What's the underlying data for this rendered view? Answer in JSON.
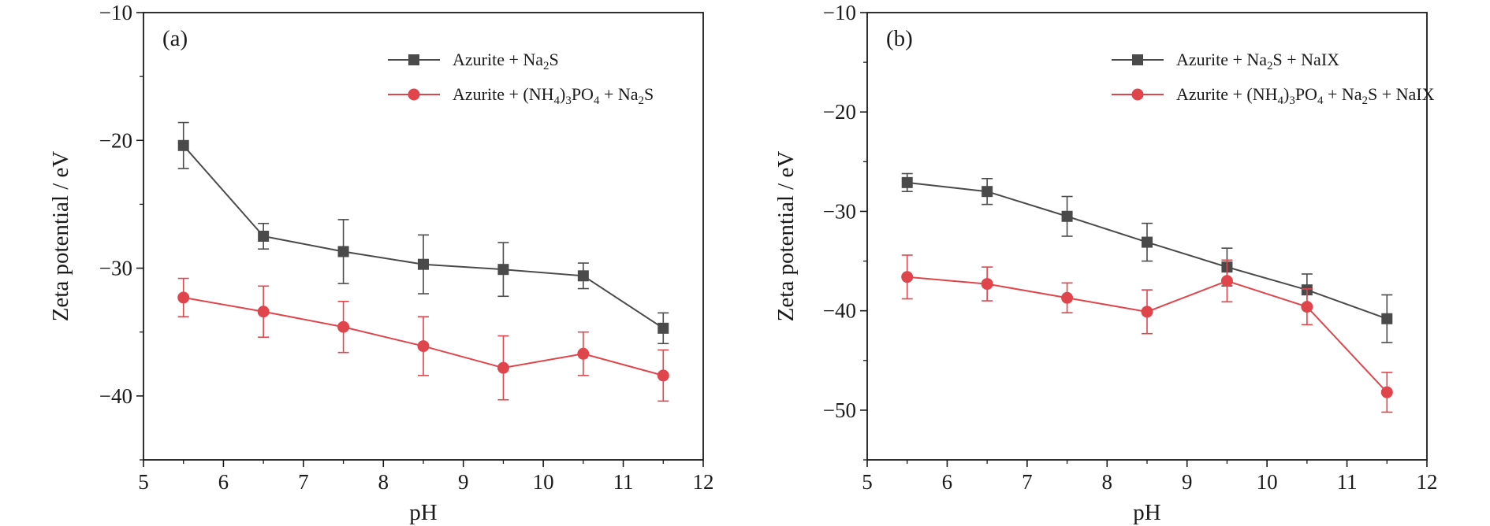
{
  "chart_data": [
    {
      "type": "line",
      "panel_label": "(a)",
      "xlabel": "pH",
      "ylabel": "Zeta potential / eV",
      "xlim": [
        5,
        12
      ],
      "ylim": [
        -45,
        -10
      ],
      "xticks": [
        5,
        6,
        7,
        8,
        9,
        10,
        11,
        12
      ],
      "yticks": [
        -10,
        -20,
        -30,
        -40
      ],
      "tick_minus": "−",
      "grid": false,
      "legend_position": "top-right",
      "x": [
        5.5,
        6.5,
        7.5,
        8.5,
        9.5,
        10.5,
        11.5
      ],
      "series": [
        {
          "name_parts": [
            "Azurite + Na",
            "2",
            "S"
          ],
          "color": "#4a4a4a",
          "marker": "square",
          "values": [
            -20.4,
            -27.5,
            -28.7,
            -29.7,
            -30.1,
            -30.6,
            -34.7
          ],
          "errors": [
            1.8,
            1.0,
            2.5,
            2.3,
            2.1,
            1.0,
            1.2
          ]
        },
        {
          "name_parts": [
            "Azurite + (NH",
            "4",
            ")",
            "3",
            "PO",
            "4",
            " + Na",
            "2",
            "S"
          ],
          "color": "#e0454c",
          "marker": "circle",
          "values": [
            -32.3,
            -33.4,
            -34.6,
            -36.1,
            -37.8,
            -36.7,
            -38.4
          ],
          "errors": [
            1.5,
            2.0,
            2.0,
            2.3,
            2.5,
            1.7,
            2.0
          ]
        }
      ]
    },
    {
      "type": "line",
      "panel_label": "(b)",
      "xlabel": "pH",
      "ylabel": "Zeta potential / eV",
      "xlim": [
        5,
        12
      ],
      "ylim": [
        -55,
        -10
      ],
      "xticks": [
        5,
        6,
        7,
        8,
        9,
        10,
        11,
        12
      ],
      "yticks": [
        -10,
        -20,
        -30,
        -40,
        -50
      ],
      "tick_minus": "−",
      "grid": false,
      "legend_position": "top-right",
      "x": [
        5.5,
        6.5,
        7.5,
        8.5,
        9.5,
        10.5,
        11.5
      ],
      "series": [
        {
          "name_parts": [
            "Azurite + Na",
            "2",
            "S + NaIX"
          ],
          "color": "#4a4a4a",
          "marker": "square",
          "values": [
            -27.1,
            -28.0,
            -30.5,
            -33.1,
            -35.6,
            -37.9,
            -40.8
          ],
          "errors": [
            0.9,
            1.3,
            2.0,
            1.9,
            1.9,
            1.6,
            2.4
          ]
        },
        {
          "name_parts": [
            "Azurite + (NH",
            "4",
            ")",
            "3",
            "PO",
            "4",
            " + Na",
            "2",
            "S + NaIX"
          ],
          "color": "#e0454c",
          "marker": "circle",
          "values": [
            -36.6,
            -37.3,
            -38.7,
            -40.1,
            -37.0,
            -39.6,
            -48.2
          ],
          "errors": [
            2.2,
            1.7,
            1.5,
            2.2,
            2.1,
            1.8,
            2.0
          ]
        }
      ]
    }
  ]
}
